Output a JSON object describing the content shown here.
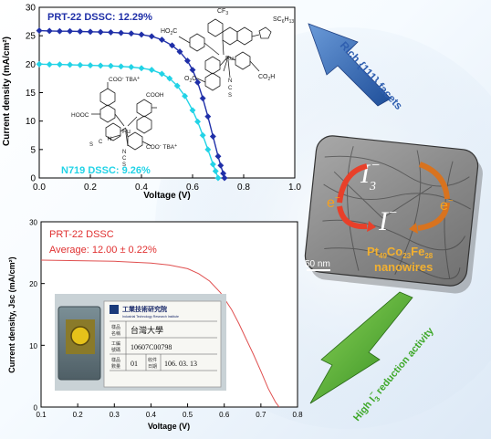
{
  "colors": {
    "prt22_top": "#1f2fa8",
    "n719": "#22d3e6",
    "prt22_bottom": "#e05050",
    "arrow_blue": "#2f5fb0",
    "arrow_green": "#3fa82a",
    "tile_bg": "#8c8c8c",
    "electron_red": "#e8402a",
    "electron_orange": "#d8731f"
  },
  "chart_data": [
    {
      "type": "line",
      "xlabel": "Voltage (V)",
      "ylabel": "Current density (mA/cm²)",
      "xlim": [
        0.0,
        1.0
      ],
      "ylim": [
        0,
        30
      ],
      "xticks": [
        "0.0",
        "0.2",
        "0.4",
        "0.6",
        "0.8",
        "1.0"
      ],
      "yticks": [
        "0",
        "5",
        "10",
        "15",
        "20",
        "25",
        "30"
      ],
      "series": [
        {
          "name": "PRT-22 DSSC: 12.29%",
          "x": [
            0.0,
            0.04,
            0.08,
            0.12,
            0.16,
            0.2,
            0.24,
            0.28,
            0.32,
            0.36,
            0.4,
            0.44,
            0.48,
            0.52,
            0.55,
            0.58,
            0.6,
            0.62,
            0.64,
            0.66,
            0.68,
            0.7,
            0.71,
            0.72,
            0.725
          ],
          "y": [
            25.9,
            25.85,
            25.8,
            25.8,
            25.75,
            25.7,
            25.65,
            25.6,
            25.5,
            25.4,
            25.2,
            24.9,
            24.3,
            23.3,
            22.2,
            20.6,
            19.0,
            16.8,
            14.0,
            10.8,
            7.3,
            3.8,
            2.2,
            0.8,
            0.0
          ]
        },
        {
          "name": "N719 DSSC: 9.26%",
          "x": [
            0.0,
            0.04,
            0.08,
            0.12,
            0.16,
            0.2,
            0.24,
            0.28,
            0.32,
            0.36,
            0.4,
            0.44,
            0.48,
            0.51,
            0.54,
            0.57,
            0.6,
            0.62,
            0.64,
            0.66,
            0.68,
            0.69,
            0.7
          ],
          "y": [
            20.0,
            19.95,
            19.95,
            19.9,
            19.85,
            19.8,
            19.75,
            19.7,
            19.6,
            19.5,
            19.3,
            19.0,
            18.3,
            17.5,
            16.2,
            14.4,
            11.9,
            9.9,
            7.5,
            5.0,
            2.4,
            1.2,
            0.0
          ]
        }
      ]
    },
    {
      "type": "line",
      "title": "PRT-22 DSSC",
      "annotation": "Average: 12.00 ±  0.22%",
      "xlabel": "Voltage (V)",
      "ylabel": "Current density, Jsc (mA/cm²)",
      "xlim": [
        0.1,
        0.8
      ],
      "ylim": [
        0,
        30
      ],
      "xticks": [
        "0.1",
        "0.2",
        "0.3",
        "0.4",
        "0.5",
        "0.6",
        "0.7",
        "0.8"
      ],
      "yticks": [
        "0",
        "10",
        "20",
        "30"
      ],
      "series": [
        {
          "name": "PRT-22 DSSC",
          "x": [
            0.1,
            0.2,
            0.3,
            0.4,
            0.45,
            0.5,
            0.53,
            0.56,
            0.59,
            0.62,
            0.64,
            0.66,
            0.68,
            0.7,
            0.72,
            0.74,
            0.75
          ],
          "y": [
            23.8,
            23.7,
            23.6,
            23.3,
            23.0,
            22.4,
            21.6,
            20.4,
            18.5,
            15.8,
            13.5,
            11.0,
            8.5,
            5.8,
            3.0,
            0.8,
            0.0
          ]
        }
      ]
    }
  ],
  "top_chart": {
    "prt_label": "PRT-22 DSSC: 12.29%",
    "n719_label": "N719 DSSC: 9.26%"
  },
  "molecule_prt22": {
    "cf3": "CF",
    "cf3_sub": "3",
    "sc6h13": "SC",
    "sc6h13_sub": "6",
    "sc6h13_h": "H",
    "sc6h13_sub2": "13",
    "ho2c": "HO",
    "ho2c_sub": "2",
    "ho2c_c": "C",
    "co2h_left": "O",
    "co2h_left_c": "C",
    "co2h": "CO",
    "co2h_sub": "2",
    "co2h_h": "H",
    "ru": "Ru",
    "n": "N",
    "c": "C",
    "s": "S"
  },
  "molecule_n719": {
    "coo_tba_top": "COO",
    "coo_tba_top_sup": "-",
    "tba": "TBA",
    "tba_sup": "+",
    "hooc": "HOOC",
    "cooh": "COOH",
    "ru": "Ru",
    "n": "N",
    "c": "C",
    "s": "S",
    "coo_tba_bottom": "COO",
    "coo_tba_bottom_sup": "-",
    "tba_bottom": "TBA",
    "tba_bottom_sup": "+"
  },
  "bottom_chart": {
    "title": "PRT-22 DSSC",
    "average": "Average: 12.00 ±  0.22%"
  },
  "cell_label": {
    "org": "工業技術研究院",
    "org_en": "Industrial Technology Research Institute",
    "row1_key": "樣品",
    "row1_key2": "名稱",
    "row1_val": "台灣大學",
    "row2_key": "工編",
    "row2_key2": "號碼",
    "row2_val": "10607C00798",
    "row3_key": "樣品",
    "row3_key2": "數量",
    "row3_val": "01",
    "row4_key": "收件",
    "row4_key2": "日期",
    "row4_val": "106. 03. 13"
  },
  "arrow_top_label": "Rich {111} facets",
  "arrow_bottom_label_pre": "High I",
  "arrow_bottom_label_sub": "3",
  "arrow_bottom_label_sup": "−",
  "arrow_bottom_label_post": " reduction activity",
  "tile": {
    "i3": "I",
    "i3_sub": "3",
    "i3_sup": "−",
    "i_minus": "I",
    "i_minus_sup": "−",
    "e_left": "e",
    "e_left_sup": "−",
    "e_right": "e",
    "e_right_sup": "−",
    "formula_pt": "Pt",
    "formula_pt_sub": "49",
    "formula_co": "Co",
    "formula_co_sub": "23",
    "formula_fe": "Fe",
    "formula_fe_sub": "28",
    "formula_word": "nanowires",
    "scale": "50 nm"
  }
}
